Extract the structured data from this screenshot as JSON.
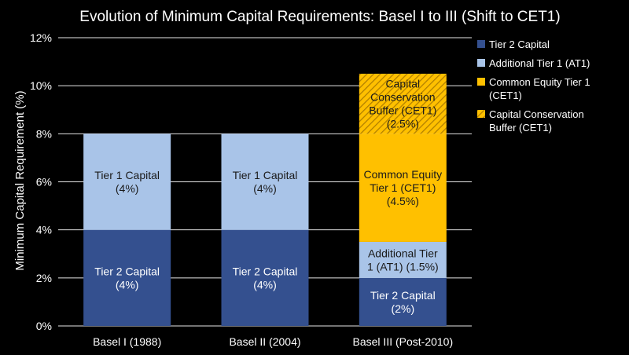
{
  "chart_data": {
    "type": "bar",
    "stacked": true,
    "title": "Evolution of Minimum Capital Requirements: Basel I to III (Shift to CET1)",
    "ylabel": "Minimum Capital Requirement (%)",
    "xlabel": "",
    "ylim": [
      0,
      12
    ],
    "yticks": [
      "0%",
      "2%",
      "4%",
      "6%",
      "8%",
      "10%",
      "12%"
    ],
    "categories": [
      "Basel I (1988)",
      "Basel II (2004)",
      "Basel III (Post-2010)"
    ],
    "grid": true,
    "legend_position": "right",
    "series": [
      {
        "name": "Tier 2 Capital",
        "color": "#34508f",
        "values": [
          4,
          4,
          2
        ],
        "labels": [
          "Tier 2 Capital\n(4%)",
          "Tier 2 Capital\n(4%)",
          "Tier 2 Capital\n(2%)"
        ]
      },
      {
        "name": "Additional Tier 1 (AT1)",
        "color": "#a9c4e8",
        "values": [
          4,
          4,
          1.5
        ],
        "labels": [
          "Tier 1 Capital\n(4%)",
          "Tier 1 Capital\n(4%)",
          "Additional Tier\n1 (AT1) (1.5%)"
        ]
      },
      {
        "name": "Common Equity Tier 1 (CET1)",
        "color": "#ffc000",
        "values": [
          0,
          0,
          4.5
        ],
        "labels": [
          "",
          "",
          "Common Equity\nTier 1 (CET1)\n(4.5%)"
        ]
      },
      {
        "name": "Capital Conservation Buffer (CET1)",
        "color": "#e0a200",
        "hatch": true,
        "values": [
          0,
          0,
          2.5
        ],
        "labels": [
          "",
          "",
          "Capital\nConservation\nBuffer (CET1)\n(2.5%)"
        ]
      }
    ]
  }
}
